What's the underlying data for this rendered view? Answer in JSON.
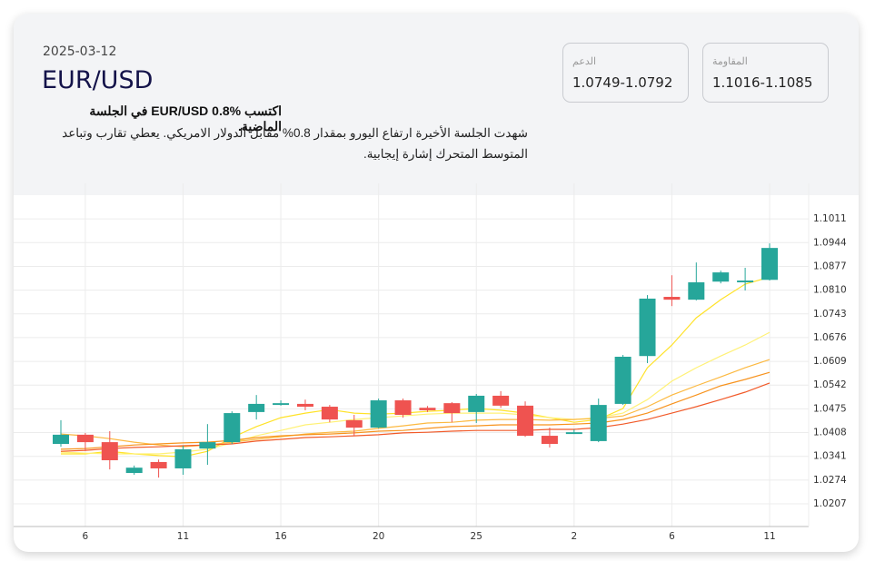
{
  "header": {
    "date": "2025-03-12",
    "pair": "EUR/USD",
    "headline": "اكتسب EUR/USD 0.8% في الجلسة الماضية.",
    "body": "شهدت الجلسة الأخيرة ارتفاع اليورو بمقدار 0.8% مقابل الدولار الامريكي. يعطي تقارب وتباعد المتوسط المتحرك إشارة إيجابية."
  },
  "levels": [
    {
      "label": "الدعم",
      "value": "1.0749-1.0792"
    },
    {
      "label": "المقاومة",
      "value": "1.1016-1.1085"
    }
  ],
  "chart_data": {
    "type": "candlestick",
    "categories": [
      null,
      "6",
      null,
      null,
      null,
      "11",
      null,
      null,
      null,
      "16",
      null,
      null,
      null,
      "20",
      null,
      null,
      null,
      "25",
      null,
      null,
      null,
      "2",
      null,
      null,
      null,
      "6",
      null,
      null,
      null,
      "11"
    ],
    "open": [
      1.0376,
      1.0402,
      1.0381,
      1.0294,
      1.0325,
      1.0307,
      1.0363,
      1.0381,
      1.0466,
      1.0486,
      1.0489,
      1.0481,
      1.0443,
      1.0422,
      1.0499,
      1.0478,
      1.0491,
      1.0466,
      1.0512,
      1.0484,
      1.0399,
      1.0404,
      1.0384,
      1.0489,
      1.0624,
      1.0791,
      1.0783,
      1.0834,
      1.0832,
      1.0839
    ],
    "high": [
      1.0443,
      1.0407,
      1.0412,
      1.0315,
      1.0332,
      1.0371,
      1.0432,
      1.0468,
      1.0514,
      1.0499,
      1.0501,
      1.0486,
      1.0458,
      1.0504,
      1.0504,
      1.0483,
      1.0494,
      1.0517,
      1.0525,
      1.0496,
      1.0422,
      1.0417,
      1.0504,
      1.0627,
      1.0796,
      1.0852,
      1.0888,
      1.0865,
      1.0873,
      1.0942
    ],
    "low": [
      1.0368,
      1.0356,
      1.0304,
      1.0289,
      1.0281,
      1.0289,
      1.0317,
      1.0376,
      1.0445,
      1.0484,
      1.0471,
      1.0437,
      1.0399,
      1.042,
      1.045,
      1.0466,
      1.0437,
      1.0435,
      1.0478,
      1.0396,
      1.0366,
      1.0404,
      1.0381,
      1.0486,
      1.0604,
      1.0765,
      1.0781,
      1.0829,
      1.0809,
      1.0837
    ],
    "close": [
      1.0402,
      1.0381,
      1.033,
      1.0309,
      1.0307,
      1.0361,
      1.0381,
      1.0463,
      1.0489,
      1.0491,
      1.0481,
      1.0445,
      1.0422,
      1.0499,
      1.0458,
      1.0471,
      1.0463,
      1.0512,
      1.0484,
      1.0399,
      1.0376,
      1.0409,
      1.0486,
      1.0622,
      1.0786,
      1.0783,
      1.0832,
      1.086,
      1.0837,
      1.0929
    ],
    "up_color": "#26a69a",
    "down_color": "#ef5350",
    "overlays": [
      {
        "color": "#ffe227",
        "values": [
          1.0348,
          1.0348,
          1.0355,
          1.0348,
          1.0343,
          1.034,
          1.0355,
          1.0394,
          1.0425,
          1.045,
          1.0463,
          1.0473,
          1.0463,
          1.046,
          1.0463,
          1.0468,
          1.0471,
          1.0476,
          1.0471,
          1.0463,
          1.045,
          1.0437,
          1.0445,
          1.0476,
          1.0591,
          1.0655,
          1.0732,
          1.0783,
          1.0827,
          1.0847
        ]
      },
      {
        "color": "#fff176",
        "values": [
          1.0353,
          1.035,
          1.0348,
          1.0348,
          1.0348,
          1.0353,
          1.0361,
          1.0379,
          1.0399,
          1.0414,
          1.043,
          1.0437,
          1.0445,
          1.045,
          1.0455,
          1.046,
          1.0463,
          1.0463,
          1.0463,
          1.0458,
          1.045,
          1.0445,
          1.045,
          1.0463,
          1.0501,
          1.0553,
          1.0591,
          1.0624,
          1.0655,
          1.0691
        ]
      },
      {
        "color": "#fcb941",
        "values": [
          1.0404,
          1.0399,
          1.0391,
          1.0381,
          1.0373,
          1.0368,
          1.0373,
          1.0381,
          1.0389,
          1.0396,
          1.0404,
          1.0409,
          1.0412,
          1.042,
          1.0427,
          1.0435,
          1.0437,
          1.0443,
          1.0445,
          1.0445,
          1.0443,
          1.0445,
          1.0448,
          1.0455,
          1.0481,
          1.0514,
          1.054,
          1.0565,
          1.0591,
          1.0614
        ]
      },
      {
        "color": "#f7931e",
        "values": [
          1.0361,
          1.0363,
          1.0368,
          1.0373,
          1.0376,
          1.0379,
          1.0381,
          1.0386,
          1.0394,
          1.0399,
          1.0402,
          1.0404,
          1.0407,
          1.0412,
          1.0414,
          1.042,
          1.0425,
          1.0427,
          1.043,
          1.043,
          1.043,
          1.0432,
          1.0435,
          1.0445,
          1.0463,
          1.0489,
          1.0514,
          1.054,
          1.0558,
          1.0578
        ]
      },
      {
        "color": "#f15a29",
        "values": [
          1.0355,
          1.0358,
          1.0363,
          1.0366,
          1.0368,
          1.0371,
          1.0373,
          1.0376,
          1.0384,
          1.0389,
          1.0394,
          1.0396,
          1.0399,
          1.0402,
          1.0407,
          1.0409,
          1.0412,
          1.0414,
          1.0414,
          1.0414,
          1.0417,
          1.0417,
          1.0422,
          1.0432,
          1.0445,
          1.0463,
          1.0481,
          1.0501,
          1.0522,
          1.0548
        ]
      }
    ],
    "ylim": [
      1.0143,
      1.106
    ],
    "yticks": [
      1.0207,
      1.0274,
      1.0341,
      1.0408,
      1.0475,
      1.0542,
      1.0609,
      1.0676,
      1.0743,
      {
        "value": 1.081,
        "label": "1.0810"
      },
      1.0877,
      1.0944,
      1.1011
    ],
    "grid": true
  }
}
